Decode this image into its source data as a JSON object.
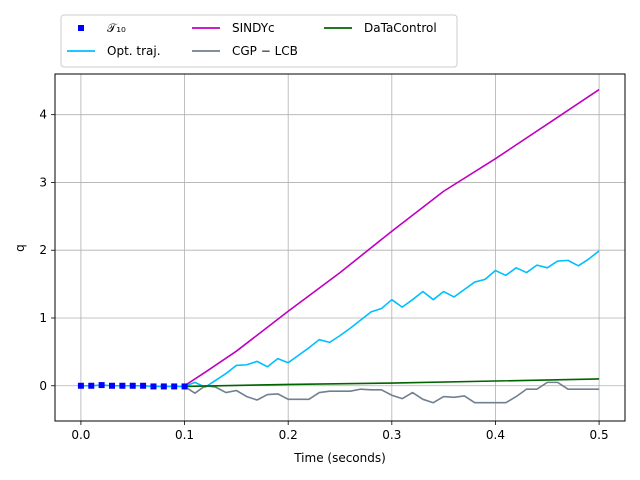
{
  "chart_data": {
    "type": "line",
    "title": "",
    "xlabel": "Time (seconds)",
    "ylabel": "q",
    "xlim": [
      -0.025,
      0.525
    ],
    "ylim": [
      -0.52,
      4.6
    ],
    "xticks": [
      0.0,
      0.1,
      0.2,
      0.3,
      0.4,
      0.5
    ],
    "xtick_labels": [
      "0.0",
      "0.1",
      "0.2",
      "0.3",
      "0.4",
      "0.5"
    ],
    "yticks": [
      0,
      1,
      2,
      3,
      4
    ],
    "ytick_labels": [
      "0",
      "1",
      "2",
      "3",
      "4"
    ],
    "grid": true,
    "legend_placement": "top, above plot, 3 columns",
    "series": [
      {
        "name": "𝒯₁₀",
        "style": "markers",
        "marker": "square",
        "color": "#0000ff",
        "x": [
          0.0,
          0.01,
          0.02,
          0.03,
          0.04,
          0.05,
          0.06,
          0.07,
          0.08,
          0.09,
          0.1
        ],
        "y": [
          0.0,
          0.0,
          0.01,
          0.0,
          0.0,
          0.0,
          0.0,
          -0.01,
          -0.01,
          -0.01,
          -0.01
        ]
      },
      {
        "name": "Opt. traj.",
        "style": "line",
        "color": "#00bfff",
        "x": [
          0.0,
          0.01,
          0.02,
          0.03,
          0.04,
          0.05,
          0.06,
          0.07,
          0.08,
          0.09,
          0.1,
          0.11,
          0.12,
          0.13,
          0.14,
          0.15,
          0.16,
          0.17,
          0.18,
          0.19,
          0.2,
          0.21,
          0.22,
          0.23,
          0.24,
          0.25,
          0.26,
          0.27,
          0.28,
          0.29,
          0.3,
          0.31,
          0.32,
          0.33,
          0.34,
          0.35,
          0.36,
          0.37,
          0.38,
          0.39,
          0.4,
          0.41,
          0.42,
          0.43,
          0.44,
          0.45,
          0.46,
          0.47,
          0.48,
          0.49,
          0.5
        ],
        "y": [
          0.0,
          0.0,
          0.01,
          0.0,
          0.0,
          0.0,
          0.0,
          -0.01,
          -0.01,
          -0.01,
          -0.01,
          0.05,
          -0.02,
          0.08,
          0.18,
          0.3,
          0.31,
          0.36,
          0.28,
          0.4,
          0.34,
          0.45,
          0.56,
          0.68,
          0.64,
          0.74,
          0.85,
          0.97,
          1.09,
          1.14,
          1.27,
          1.16,
          1.27,
          1.39,
          1.27,
          1.39,
          1.31,
          1.42,
          1.53,
          1.57,
          1.7,
          1.63,
          1.74,
          1.67,
          1.78,
          1.74,
          1.84,
          1.85,
          1.77,
          1.87,
          1.99
        ]
      },
      {
        "name": "SINDYc",
        "style": "line",
        "color": "#bf00bf",
        "x": [
          0.1,
          0.12,
          0.15,
          0.2,
          0.25,
          0.3,
          0.35,
          0.4,
          0.45,
          0.5
        ],
        "y": [
          0.0,
          0.2,
          0.51,
          1.1,
          1.67,
          2.28,
          2.87,
          3.35,
          3.86,
          4.37
        ]
      },
      {
        "name": "CGP − LCB",
        "style": "line",
        "color": "#708090",
        "x": [
          0.1,
          0.11,
          0.12,
          0.13,
          0.14,
          0.15,
          0.16,
          0.17,
          0.18,
          0.19,
          0.2,
          0.21,
          0.22,
          0.23,
          0.24,
          0.25,
          0.26,
          0.27,
          0.28,
          0.29,
          0.3,
          0.31,
          0.32,
          0.33,
          0.34,
          0.35,
          0.36,
          0.37,
          0.38,
          0.39,
          0.4,
          0.41,
          0.42,
          0.43,
          0.44,
          0.45,
          0.46,
          0.47,
          0.48,
          0.49,
          0.5
        ],
        "y": [
          -0.01,
          -0.11,
          0.0,
          -0.02,
          -0.1,
          -0.07,
          -0.16,
          -0.21,
          -0.13,
          -0.12,
          -0.2,
          -0.2,
          -0.2,
          -0.1,
          -0.08,
          -0.08,
          -0.08,
          -0.05,
          -0.06,
          -0.06,
          -0.14,
          -0.19,
          -0.1,
          -0.2,
          -0.25,
          -0.16,
          -0.17,
          -0.15,
          -0.25,
          -0.25,
          -0.25,
          -0.25,
          -0.16,
          -0.05,
          -0.05,
          0.05,
          0.05,
          -0.05,
          -0.05,
          -0.05,
          -0.05
        ]
      },
      {
        "name": "DaTaControl",
        "style": "line",
        "color": "#006400",
        "x": [
          0.1,
          0.2,
          0.3,
          0.4,
          0.5
        ],
        "y": [
          -0.01,
          0.02,
          0.04,
          0.07,
          0.1
        ]
      }
    ]
  }
}
